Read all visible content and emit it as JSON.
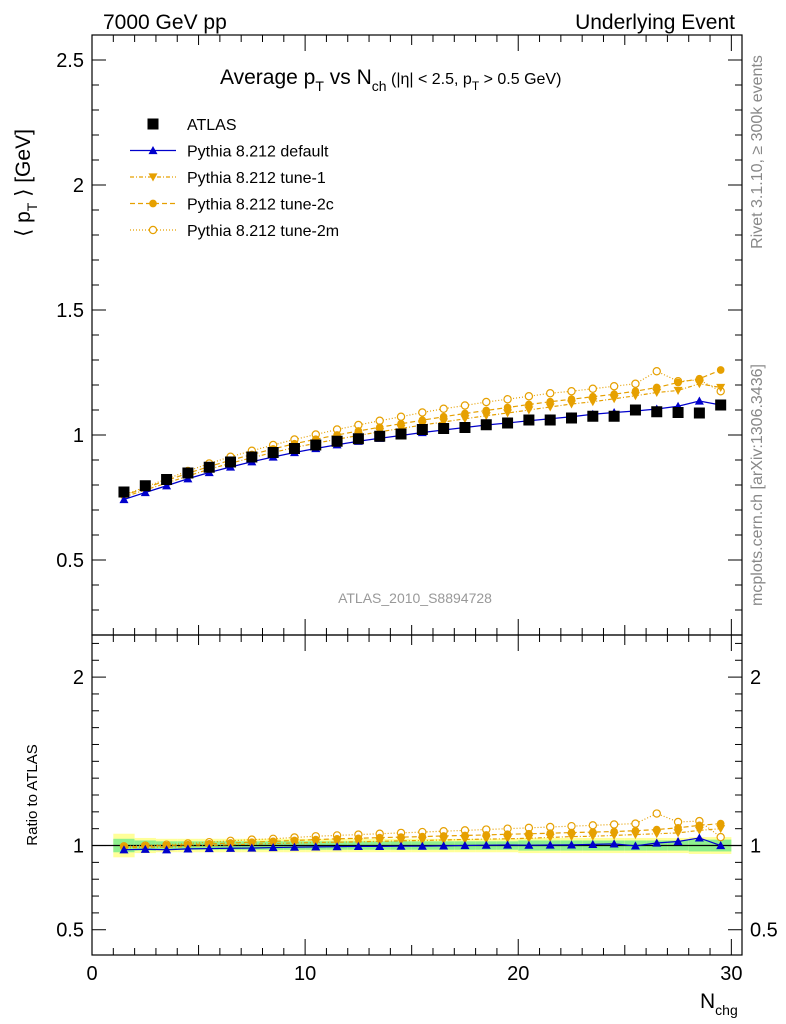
{
  "header": {
    "left": "7000 GeV pp",
    "right": "Underlying Event"
  },
  "side_labels": {
    "rivet": "Rivet 3.1.10, ≥ 300k events",
    "mcplots": "mcplots.cern.ch [arXiv:1306.3436]"
  },
  "analysis_id": "ATLAS_2010_S8894728",
  "colors": {
    "atlas": "#000000",
    "default": "#0000cc",
    "tune": "#e6a000",
    "band_inner": "#8ef08e",
    "band_outer": "#ffff99"
  },
  "chart_data": [
    {
      "type": "line",
      "panel": "main",
      "title": "Average pT vs Nch (|η| < 2.5, pT > 0.5 GeV)",
      "xlabel": "Nchg",
      "ylabel": "⟨ pT ⟩ [GeV]",
      "xlim": [
        0,
        30.5
      ],
      "ylim": [
        0.2,
        2.6
      ],
      "yticks": [
        0.5,
        1,
        1.5,
        2,
        2.5
      ],
      "ytick_labels": [
        "0.5",
        "1",
        "1.5",
        "2",
        "2.5"
      ],
      "xticks": [
        0,
        10,
        20,
        30
      ],
      "xtick_labels": [
        "0",
        "10",
        "20",
        "30"
      ],
      "legend_placement": "top-left",
      "x": [
        1.5,
        2.5,
        3.5,
        4.5,
        5.5,
        6.5,
        7.5,
        8.5,
        9.5,
        10.5,
        11.5,
        12.5,
        13.5,
        14.5,
        15.5,
        16.5,
        17.5,
        18.5,
        19.5,
        20.5,
        21.5,
        22.5,
        23.5,
        24.5,
        25.5,
        26.5,
        27.5,
        28.5,
        29.5
      ],
      "series": [
        {
          "name": "ATLAS",
          "style": "data",
          "values": [
            0.772,
            0.797,
            0.822,
            0.848,
            0.871,
            0.892,
            0.912,
            0.93,
            0.946,
            0.96,
            0.975,
            0.985,
            0.995,
            1.004,
            1.022,
            1.026,
            1.03,
            1.041,
            1.048,
            1.06,
            1.06,
            1.068,
            1.075,
            1.075,
            1.1,
            1.093,
            1.09,
            1.088,
            1.12
          ]
        },
        {
          "name": "Pythia 8.212 default",
          "style": "default",
          "values": [
            0.742,
            0.77,
            0.797,
            0.825,
            0.85,
            0.872,
            0.893,
            0.912,
            0.93,
            0.946,
            0.961,
            0.975,
            0.987,
            0.998,
            1.01,
            1.02,
            1.03,
            1.04,
            1.048,
            1.057,
            1.065,
            1.073,
            1.083,
            1.09,
            1.096,
            1.104,
            1.115,
            1.136,
            1.12
          ]
        },
        {
          "name": "Pythia 8.212 tune-1",
          "style": "tune1",
          "values": [
            0.752,
            0.78,
            0.808,
            0.836,
            0.863,
            0.887,
            0.909,
            0.93,
            0.95,
            0.967,
            0.983,
            0.998,
            1.013,
            1.026,
            1.04,
            1.052,
            1.065,
            1.077,
            1.088,
            1.1,
            1.112,
            1.124,
            1.133,
            1.145,
            1.157,
            1.17,
            1.178,
            1.205,
            1.19
          ]
        },
        {
          "name": "Pythia 8.212 tune-2c",
          "style": "tune2c",
          "values": [
            0.758,
            0.788,
            0.818,
            0.847,
            0.874,
            0.899,
            0.922,
            0.944,
            0.965,
            0.983,
            1.0,
            1.016,
            1.031,
            1.045,
            1.059,
            1.073,
            1.086,
            1.098,
            1.11,
            1.122,
            1.133,
            1.143,
            1.153,
            1.163,
            1.175,
            1.19,
            1.21,
            1.225,
            1.26
          ]
        },
        {
          "name": "Pythia 8.212 tune-2m",
          "style": "tune2m",
          "values": [
            0.76,
            0.792,
            0.824,
            0.856,
            0.886,
            0.913,
            0.937,
            0.96,
            0.982,
            1.002,
            1.022,
            1.04,
            1.057,
            1.073,
            1.09,
            1.105,
            1.118,
            1.132,
            1.143,
            1.155,
            1.167,
            1.175,
            1.185,
            1.195,
            1.205,
            1.255,
            1.215,
            1.22,
            1.175
          ]
        }
      ]
    },
    {
      "type": "line",
      "panel": "ratio",
      "ylabel": "Ratio to ATLAS",
      "xlabel": "Nchg",
      "xlim": [
        0,
        30.5
      ],
      "ylim": [
        0.35,
        2.25
      ],
      "yticks": [
        0.5,
        1,
        2
      ],
      "ytick_labels": [
        "0.5",
        "1",
        "2"
      ],
      "reference": 1,
      "x": [
        1.5,
        2.5,
        3.5,
        4.5,
        5.5,
        6.5,
        7.5,
        8.5,
        9.5,
        10.5,
        11.5,
        12.5,
        13.5,
        14.5,
        15.5,
        16.5,
        17.5,
        18.5,
        19.5,
        20.5,
        21.5,
        22.5,
        23.5,
        24.5,
        25.5,
        26.5,
        27.5,
        28.5,
        29.5
      ],
      "band_inner": [
        0.04,
        0.03,
        0.025,
        0.025,
        0.025,
        0.025,
        0.025,
        0.025,
        0.025,
        0.025,
        0.025,
        0.025,
        0.025,
        0.025,
        0.025,
        0.025,
        0.025,
        0.025,
        0.025,
        0.03,
        0.03,
        0.03,
        0.03,
        0.03,
        0.03,
        0.03,
        0.03,
        0.035,
        0.035
      ],
      "band_outer": [
        0.07,
        0.045,
        0.04,
        0.04,
        0.04,
        0.04,
        0.04,
        0.04,
        0.04,
        0.04,
        0.04,
        0.04,
        0.04,
        0.04,
        0.04,
        0.04,
        0.04,
        0.04,
        0.04,
        0.045,
        0.045,
        0.045,
        0.045,
        0.045,
        0.045,
        0.045,
        0.045,
        0.05,
        0.05
      ],
      "series": [
        {
          "name": "Pythia 8.212 default",
          "style": "default",
          "values": [
            0.975,
            0.978,
            0.975,
            0.98,
            0.982,
            0.984,
            0.985,
            0.988,
            0.99,
            0.992,
            0.993,
            0.995,
            0.995,
            0.996,
            0.996,
            0.998,
            1.0,
            1.002,
            1.003,
            1.002,
            1.003,
            1.004,
            1.007,
            1.01,
            0.998,
            1.015,
            1.024,
            1.045,
            1.0
          ]
        },
        {
          "name": "Pythia 8.212 tune-1",
          "style": "tune1",
          "values": [
            0.985,
            0.99,
            0.99,
            0.995,
            1.0,
            1.005,
            1.008,
            1.012,
            1.015,
            1.018,
            1.02,
            1.022,
            1.025,
            1.028,
            1.03,
            1.033,
            1.036,
            1.038,
            1.04,
            1.043,
            1.048,
            1.053,
            1.055,
            1.06,
            1.065,
            1.07,
            1.075,
            1.09,
            1.1
          ]
        },
        {
          "name": "Pythia 8.212 tune-2c",
          "style": "tune2c",
          "values": [
            0.99,
            0.995,
            1.0,
            1.005,
            1.01,
            1.015,
            1.02,
            1.025,
            1.03,
            1.035,
            1.04,
            1.043,
            1.047,
            1.05,
            1.053,
            1.057,
            1.06,
            1.063,
            1.067,
            1.07,
            1.073,
            1.077,
            1.08,
            1.083,
            1.088,
            1.095,
            1.105,
            1.12,
            1.13
          ]
        },
        {
          "name": "Pythia 8.212 tune-2m",
          "style": "tune2m",
          "values": [
            0.995,
            1.0,
            1.005,
            1.012,
            1.02,
            1.028,
            1.035,
            1.04,
            1.048,
            1.055,
            1.06,
            1.065,
            1.07,
            1.075,
            1.08,
            1.085,
            1.09,
            1.095,
            1.1,
            1.105,
            1.11,
            1.115,
            1.12,
            1.125,
            1.13,
            1.19,
            1.14,
            1.145,
            1.05
          ]
        }
      ]
    }
  ]
}
